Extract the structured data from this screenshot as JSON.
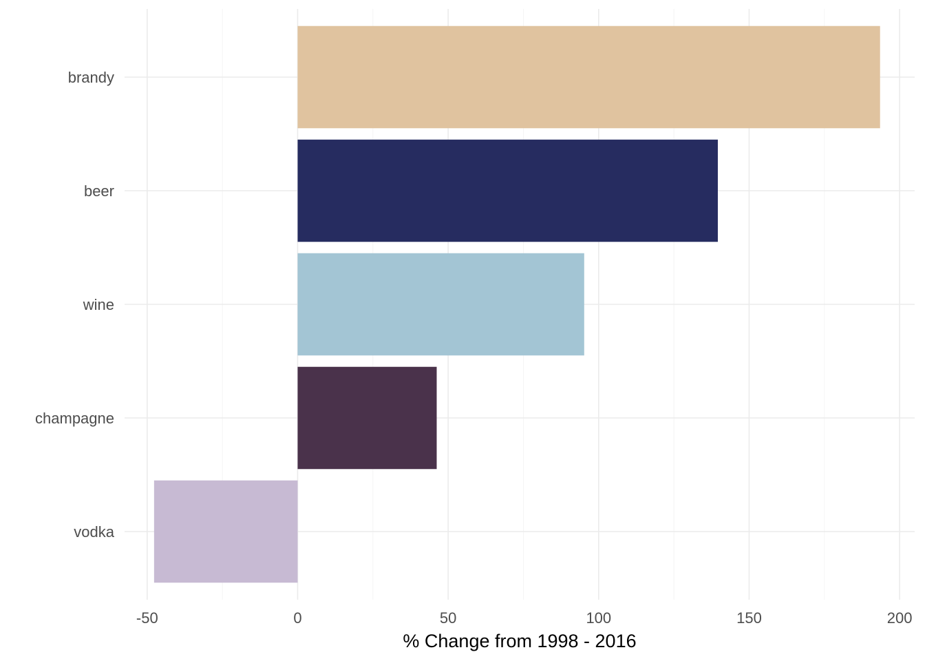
{
  "chart_data": {
    "type": "bar",
    "orientation": "horizontal",
    "title": "",
    "xlabel": "% Change from 1998 - 2016",
    "ylabel": "",
    "xlim": [
      -57.5,
      205
    ],
    "xticks": [
      -50,
      0,
      50,
      100,
      150,
      200
    ],
    "xtick_labels": [
      "-50",
      "0",
      "50",
      "100",
      "150",
      "200"
    ],
    "grid": true,
    "legend": "none",
    "categories": [
      "brandy",
      "beer",
      "wine",
      "champagne",
      "vodka"
    ],
    "values": [
      193.5,
      139.6,
      95.2,
      46.2,
      -47.7
    ],
    "colors": [
      "#e0c39f",
      "#262c60",
      "#a3c5d4",
      "#4a324b",
      "#c7bad3"
    ]
  }
}
